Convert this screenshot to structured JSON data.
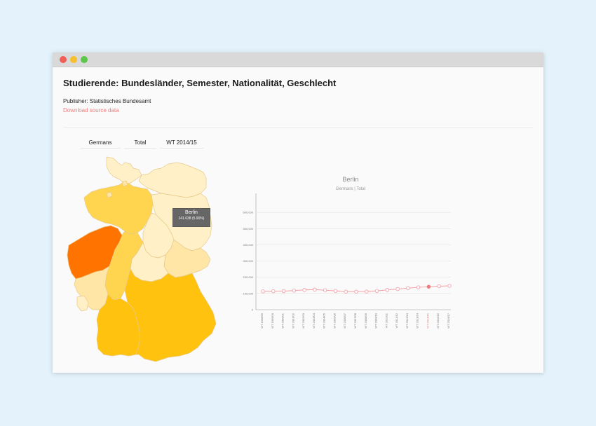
{
  "page": {
    "title": "Studierende: Bundesländer, Semester, Nationalität, Geschlecht",
    "publisher": "Publisher: Statistisches Bundesamt",
    "download_link": "Download source data"
  },
  "filters": {
    "nationality": "Germans",
    "gender": "Total",
    "semester": "WT 2014/15"
  },
  "tooltip": {
    "name": "Berlin",
    "value": "141.638 (5.90%)"
  },
  "colors": {
    "line": "#f3a0a8",
    "point_fill": "#ffffff",
    "selected_point": "#f07c7c",
    "highlight_label": "#f07c7c",
    "map_highest": "#ff7400",
    "map_high": "#ffc20e",
    "map_mid": "#ffd54f",
    "map_low": "#ffe6a6",
    "map_lowest": "#fff0c7"
  },
  "chart_data": {
    "type": "line",
    "title": "Berlin",
    "subtitle": "Germans | Total",
    "categories": [
      "WT 1998/99",
      "WT 1999/00",
      "WT 2000/01",
      "WT 2001/02",
      "WT 2002/03",
      "WT 2003/04",
      "WT 2004/05",
      "WT 2005/06",
      "WT 2006/07",
      "WT 2007/08",
      "WT 2008/09",
      "WT 2009/10",
      "WT 2010/11",
      "WT 2011/12",
      "WT 2012/13",
      "WT 2013/14",
      "WT 2014/15",
      "WT 2015/16",
      "WT 2016/17"
    ],
    "values": [
      113000,
      114000,
      114500,
      118000,
      122000,
      124000,
      120000,
      116000,
      111000,
      111000,
      112000,
      116000,
      122000,
      127000,
      133000,
      138000,
      141638,
      145000,
      147000
    ],
    "ylim": [
      0,
      700000
    ],
    "yticks": [
      0,
      100000,
      200000,
      300000,
      400000,
      500000,
      600000
    ],
    "ytick_labels": [
      "0",
      "100,000",
      "200,000",
      "300,000",
      "400,000",
      "500,000",
      "600,000"
    ],
    "highlighted_category": "WT 2014/15",
    "grid": true,
    "legend": "none"
  }
}
